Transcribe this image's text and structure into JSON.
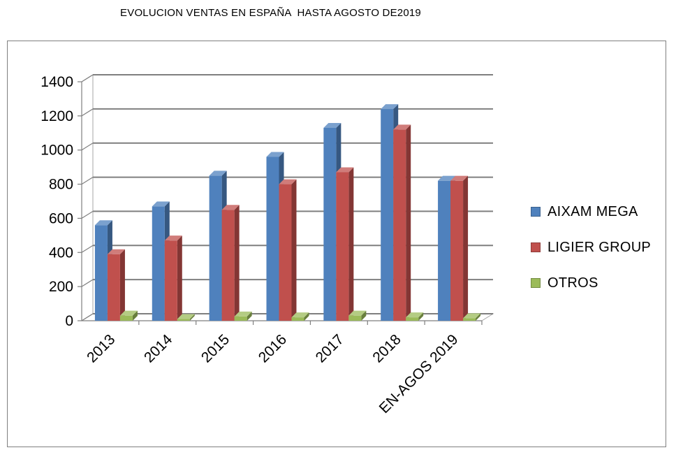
{
  "chart_data": {
    "type": "bar",
    "title": "EVOLUCION VENTAS EN ESPAÑA  HASTA AGOSTO DE2019",
    "categories": [
      "2013",
      "2014",
      "2015",
      "2016",
      "2017",
      "2018",
      "EN-AGOS 2019"
    ],
    "series": [
      {
        "name": "AIXAM MEGA",
        "values": [
          560,
          670,
          850,
          960,
          1130,
          1240,
          820
        ],
        "color": "#4f81bd"
      },
      {
        "name": "LIGIER GROUP",
        "values": [
          390,
          470,
          650,
          800,
          870,
          1120,
          820
        ],
        "color": "#c0504d"
      },
      {
        "name": "OTROS",
        "values": [
          30,
          10,
          25,
          20,
          30,
          20,
          15
        ],
        "color": "#9bbb59"
      }
    ],
    "yticks": [
      0,
      200,
      400,
      600,
      800,
      1000,
      1200,
      1400
    ],
    "ylim": [
      0,
      1400
    ],
    "grid": true,
    "legend_position": "right",
    "style": "3d-clustered-column"
  }
}
